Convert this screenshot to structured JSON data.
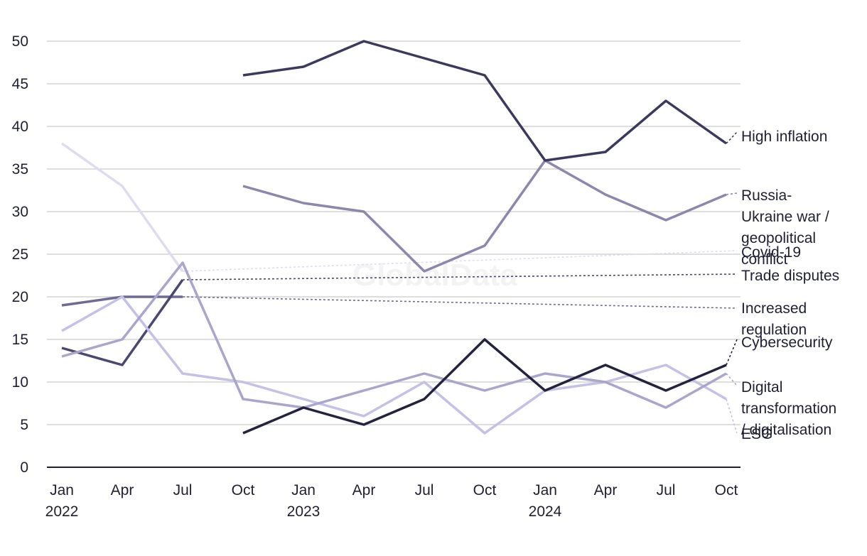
{
  "chart_data": {
    "type": "line",
    "title": "",
    "xlabel": "",
    "ylabel": "",
    "watermark": "GlobalData",
    "ylim": [
      0,
      50
    ],
    "yticks": [
      "0",
      "5",
      "10",
      "15",
      "20",
      "25",
      "30",
      "35",
      "40",
      "45",
      "50"
    ],
    "categories": [
      "Jan 2022",
      "Apr 2022",
      "Jul 2022",
      "Oct 2022",
      "Jan 2023",
      "Apr 2023",
      "Jul 2023",
      "Oct 2023",
      "Jan 2024",
      "Apr 2024",
      "Jul 2024",
      "Oct 2024"
    ],
    "xtick_labels": [
      {
        "month": "Jan",
        "year": "2022"
      },
      {
        "month": "Apr",
        "year": ""
      },
      {
        "month": "Jul",
        "year": ""
      },
      {
        "month": "Oct",
        "year": ""
      },
      {
        "month": "Jan",
        "year": "2023"
      },
      {
        "month": "Apr",
        "year": ""
      },
      {
        "month": "Jul",
        "year": ""
      },
      {
        "month": "Oct",
        "year": ""
      },
      {
        "month": "Jan",
        "year": "2024"
      },
      {
        "month": "Apr",
        "year": ""
      },
      {
        "month": "Jul",
        "year": ""
      },
      {
        "month": "Oct",
        "year": ""
      }
    ],
    "grid": true,
    "legend": "direct labels at right",
    "series": [
      {
        "name": "High inflation",
        "label_lines": [
          "High inflation"
        ],
        "color": "#3b3a5e",
        "values": [
          null,
          null,
          null,
          46,
          47,
          50,
          48,
          46,
          36,
          37,
          43,
          38
        ]
      },
      {
        "name": "Russia-Ukraine war / geopolitical conflict",
        "label_lines": [
          "Russia-",
          "Ukraine war /",
          "geopolitical",
          "conflict"
        ],
        "color": "#8d86ad",
        "values": [
          null,
          null,
          null,
          33,
          31,
          30,
          23,
          26,
          36,
          32,
          29,
          32
        ]
      },
      {
        "name": "Covid-19",
        "label_lines": [
          "Covid-19"
        ],
        "color": "#dddcf0",
        "values": [
          38,
          33,
          23,
          null,
          null,
          null,
          null,
          null,
          null,
          null,
          null,
          null
        ]
      },
      {
        "name": "Trade disputes",
        "label_lines": [
          "Trade disputes"
        ],
        "color": "#4a4870",
        "values": [
          14,
          12,
          22,
          null,
          null,
          null,
          null,
          null,
          null,
          null,
          null,
          null
        ]
      },
      {
        "name": "Increased regulation",
        "label_lines": [
          "Increased",
          "regulation"
        ],
        "color": "#6e6a94",
        "values": [
          19,
          20,
          20,
          null,
          null,
          null,
          null,
          null,
          null,
          null,
          null,
          null
        ]
      },
      {
        "name": "Cybersecurity",
        "label_lines": [
          "Cybersecurity"
        ],
        "color": "#24233f",
        "values": [
          null,
          null,
          null,
          4,
          7,
          5,
          8,
          15,
          9,
          12,
          9,
          12
        ]
      },
      {
        "name": "Digital transformation / digitalisation",
        "label_lines": [
          "Digital",
          "transformation",
          "/ digitalisation"
        ],
        "color": "#aaa5cc",
        "values": [
          13,
          15,
          24,
          8,
          7,
          9,
          11,
          9,
          11,
          10,
          7,
          11
        ]
      },
      {
        "name": "ESG",
        "label_lines": [
          "ESG"
        ],
        "color": "#c4c0e6",
        "values": [
          16,
          20,
          11,
          10,
          8,
          6,
          10,
          4,
          9,
          10,
          12,
          8
        ]
      }
    ]
  }
}
